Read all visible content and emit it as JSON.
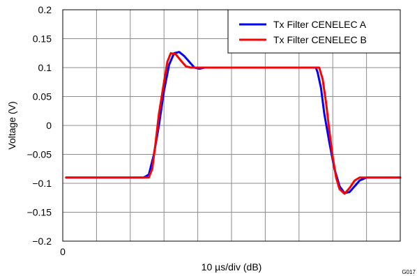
{
  "chart_data": {
    "type": "line",
    "title": "",
    "xlabel": "10 µs/div (dB)",
    "ylabel": "Voltage (V)",
    "x_tick_labels": [
      "0"
    ],
    "xlim": [
      0,
      10
    ],
    "ylim": [
      -0.2,
      0.2
    ],
    "y_ticks": [
      -0.2,
      -0.15,
      -0.1,
      -0.05,
      0,
      0.05,
      0.1,
      0.15,
      0.2
    ],
    "y_tick_labels": [
      "−0.2",
      "−0.15",
      "−0.1",
      "−0.05",
      "0",
      "0.05",
      "0.1",
      "0.15",
      "0.2"
    ],
    "grid": true,
    "legend_position": "top-right",
    "figure_code": "G017",
    "series": [
      {
        "name": "Tx Filter CENELEC A",
        "color": "#0000ff",
        "x": [
          0.1,
          2.4,
          2.55,
          2.7,
          2.85,
          3.0,
          3.15,
          3.3,
          3.45,
          3.6,
          3.75,
          3.9,
          4.05,
          4.2,
          5.0,
          7.5,
          7.55,
          7.65,
          7.75,
          7.9,
          8.05,
          8.2,
          8.35,
          8.5,
          8.65,
          8.8,
          9.0,
          10.0
        ],
        "y": [
          -0.09,
          -0.09,
          -0.085,
          -0.05,
          0.0,
          0.06,
          0.105,
          0.125,
          0.127,
          0.12,
          0.11,
          0.1,
          0.098,
          0.1,
          0.1,
          0.1,
          0.092,
          0.065,
          0.02,
          -0.03,
          -0.075,
          -0.105,
          -0.117,
          -0.115,
          -0.105,
          -0.095,
          -0.09,
          -0.09
        ]
      },
      {
        "name": "Tx Filter CENELEC B",
        "color": "#ff0000",
        "x": [
          0.1,
          2.55,
          2.65,
          2.75,
          2.85,
          3.0,
          3.1,
          3.2,
          3.35,
          3.5,
          3.65,
          3.8,
          4.0,
          5.0,
          7.6,
          7.7,
          7.8,
          7.9,
          8.0,
          8.1,
          8.2,
          8.35,
          8.5,
          8.65,
          8.8,
          9.0,
          10.0
        ],
        "y": [
          -0.09,
          -0.09,
          -0.075,
          -0.03,
          0.02,
          0.075,
          0.11,
          0.125,
          0.123,
          0.112,
          0.102,
          0.1,
          0.1,
          0.1,
          0.1,
          0.08,
          0.04,
          -0.01,
          -0.055,
          -0.09,
          -0.11,
          -0.118,
          -0.108,
          -0.095,
          -0.09,
          -0.09,
          -0.09
        ]
      }
    ]
  }
}
